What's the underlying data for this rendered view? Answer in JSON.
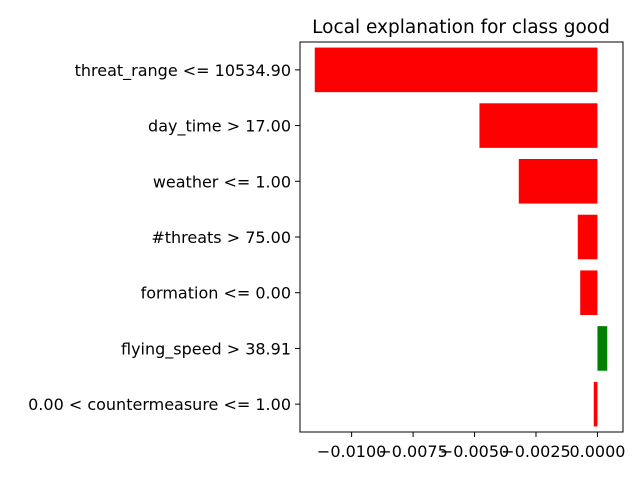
{
  "chart_data": {
    "type": "bar",
    "orientation": "horizontal",
    "title": "Local explanation for class good",
    "xlabel": "",
    "ylabel": "",
    "categories": [
      "threat_range <= 10534.90",
      "day_time > 17.00",
      "weather <= 1.00",
      "#threats > 75.00",
      "formation <= 0.00",
      "flying_speed > 38.91",
      "0.00 < countermeasure <= 1.00"
    ],
    "values": [
      -0.0115,
      -0.0048,
      -0.0032,
      -0.0008,
      -0.0007,
      0.0004,
      -0.00015
    ],
    "colors": {
      "negative": "#ff0000",
      "positive": "#008000"
    },
    "xlim": [
      -0.0121,
      0.00104
    ],
    "xticks": [
      -0.01,
      -0.0075,
      -0.005,
      -0.0025,
      0.0
    ],
    "xtick_labels": [
      "−0.0100",
      "−0.0075",
      "−0.0050",
      "−0.0025",
      "0.0000"
    ],
    "grid": false,
    "legend": "none"
  }
}
